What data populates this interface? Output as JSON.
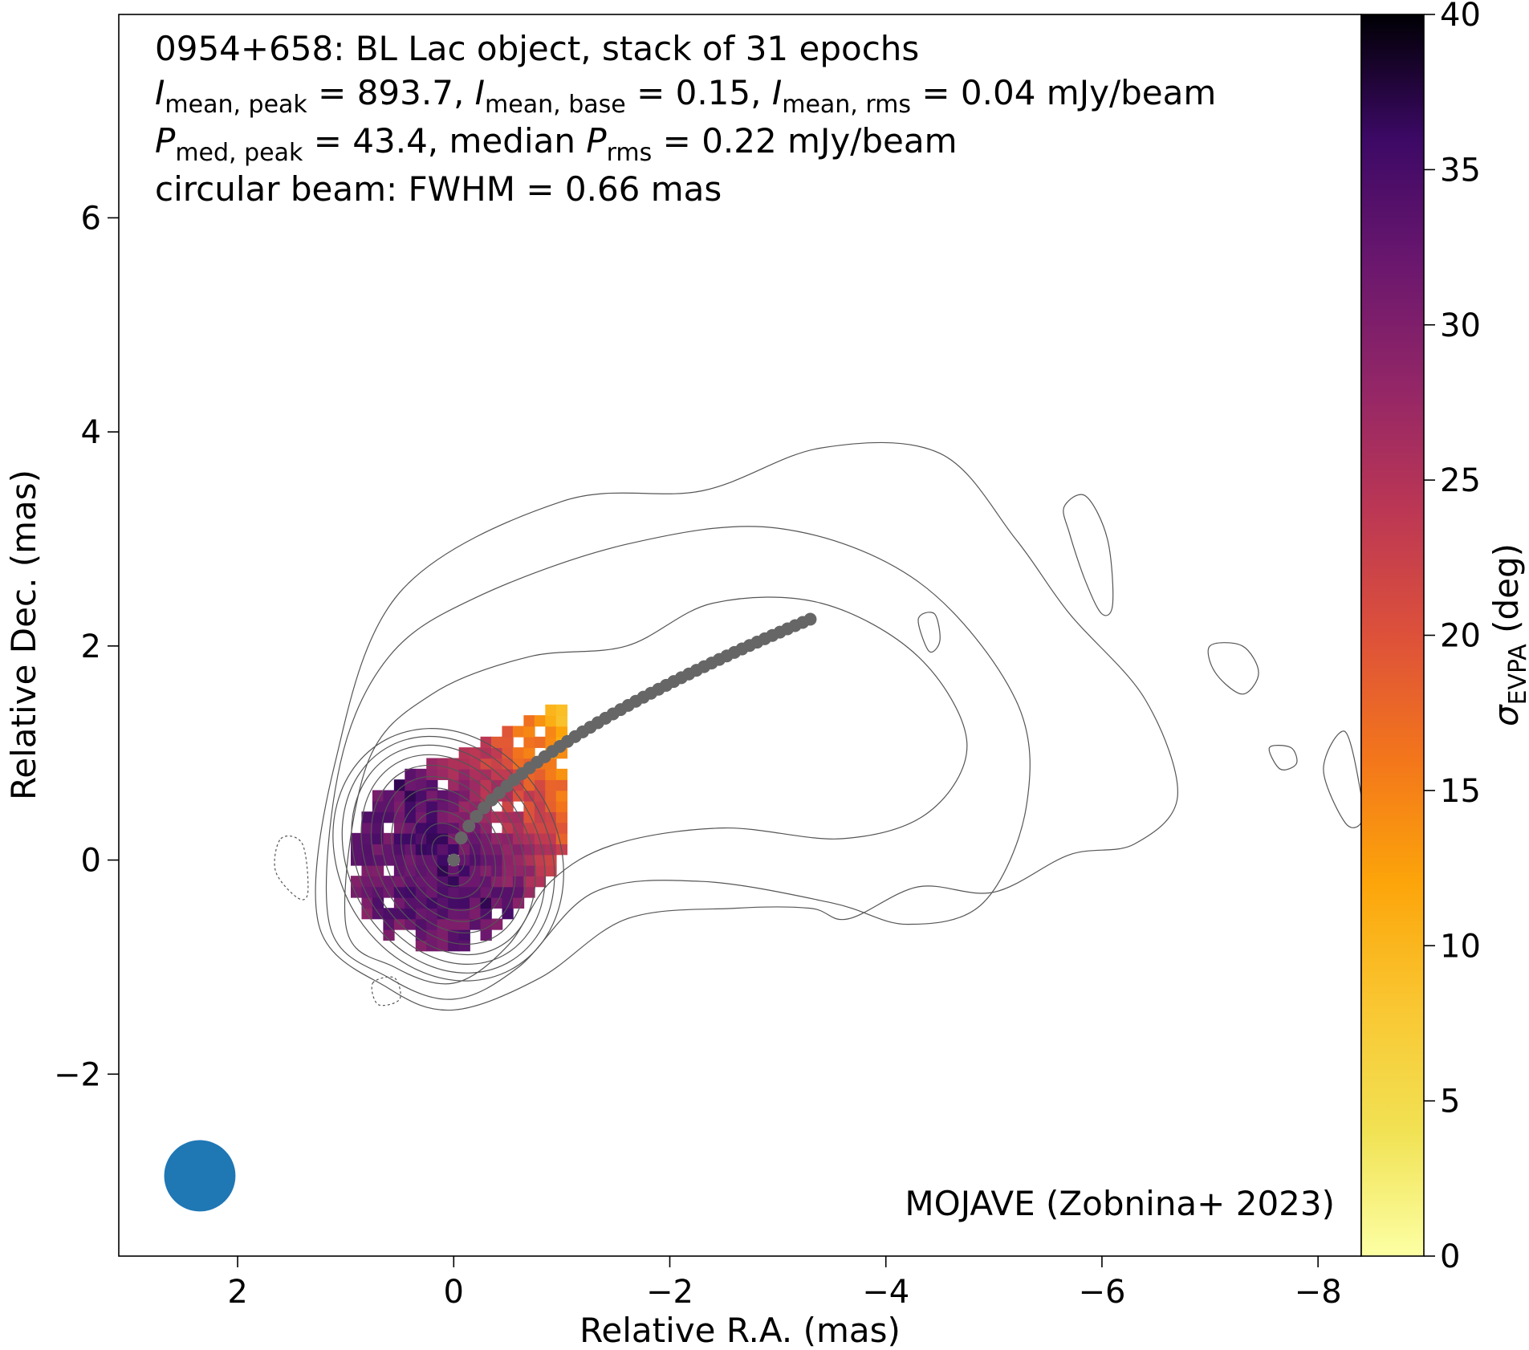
{
  "chart_data": {
    "type": "heatmap",
    "title_lines": [
      "0954+658: BL Lac object, stack of 31 epochs",
      "I_mean,peak = 893.7, I_mean,base = 0.15, I_mean,rms = 0.04 mJy/beam",
      "P_med,peak = 43.4, median P_rms = 0.22 mJy/beam",
      "circular beam: FWHM = 0.66 mas"
    ],
    "title_parts": {
      "sym_I": "I",
      "sym_P": "P",
      "sub_mean_peak": "mean, peak",
      "sub_mean_base": "mean, base",
      "sub_mean_rms": "mean, rms",
      "sub_med_peak": "med, peak",
      "sub_rms": "rms",
      "line1": "0954+658: BL Lac object, stack of 31 epochs",
      "line2_a": " = 893.7, ",
      "line2_b": " = 0.15, ",
      "line2_c": " = 0.04 mJy/beam",
      "line3_a": " = 43.4, median ",
      "line3_b": " = 0.22 mJy/beam",
      "line4": "circular beam: FWHM = 0.66 mas"
    },
    "credit": "MOJAVE (Zobnina+ 2023)",
    "xlabel": "Relative R.A. (mas)",
    "ylabel": "Relative Dec. (mas)",
    "xlim": [
      3.1,
      -8.4
    ],
    "ylim": [
      -3.7,
      7.9
    ],
    "x_ticks": [
      2,
      0,
      -2,
      -4,
      -6,
      -8
    ],
    "x_tick_labels": [
      "2",
      "0",
      "−2",
      "−4",
      "−6",
      "−8"
    ],
    "y_ticks": [
      -2,
      0,
      2,
      4,
      6
    ],
    "y_tick_labels": [
      "−2",
      "0",
      "2",
      "4",
      "6"
    ],
    "colorbar": {
      "label_symbol": "σ",
      "label_sub": "EVPA",
      "label_unit": " (deg)",
      "range": [
        0,
        40
      ],
      "ticks": [
        0,
        5,
        10,
        15,
        20,
        25,
        30,
        35,
        40
      ],
      "colormap": "inferno_r"
    },
    "ridgeline": {
      "color": "#666666",
      "start": [
        0.0,
        0.0
      ],
      "end": [
        -3.3,
        2.25
      ],
      "n_points": 48
    },
    "beam": {
      "center": [
        2.35,
        -2.95
      ],
      "fwhm_mas": 0.66,
      "color": "#1f77b4"
    },
    "sigma_evpa_field": {
      "pixel_size_mas": 0.1,
      "core": {
        "center": [
          0.05,
          0.05
        ],
        "value": 35
      },
      "jet_direction_deg": 35,
      "value_at_jet_end": 6
    },
    "contours": {
      "color": "#555555",
      "core_levels_semi_axes_mas": [
        [
          0.14,
          0.19
        ],
        [
          0.23,
          0.31
        ],
        [
          0.32,
          0.43
        ],
        [
          0.4,
          0.55
        ],
        [
          0.48,
          0.66
        ],
        [
          0.57,
          0.77
        ],
        [
          0.66,
          0.88
        ],
        [
          0.75,
          0.98
        ],
        [
          0.84,
          1.07
        ],
        [
          0.93,
          1.15
        ],
        [
          1.02,
          1.22
        ]
      ],
      "outer_levels": [
        [
          [
            1.0,
            -0.6
          ],
          [
            0.55,
            -1.0
          ],
          [
            0.0,
            -1.15
          ],
          [
            -0.5,
            -0.8
          ],
          [
            -0.9,
            -0.2
          ],
          [
            -1.5,
            0.15
          ],
          [
            -2.5,
            0.3
          ],
          [
            -3.6,
            0.2
          ],
          [
            -4.4,
            0.45
          ],
          [
            -4.75,
            1.1
          ],
          [
            -4.3,
            1.9
          ],
          [
            -3.4,
            2.4
          ],
          [
            -2.4,
            2.4
          ],
          [
            -1.6,
            2.0
          ],
          [
            -0.7,
            1.9
          ],
          [
            0.2,
            1.55
          ],
          [
            0.8,
            0.9
          ]
        ],
        [
          [
            1.15,
            -0.6
          ],
          [
            0.6,
            -1.1
          ],
          [
            0.0,
            -1.3
          ],
          [
            -0.6,
            -1.0
          ],
          [
            -1.3,
            -0.3
          ],
          [
            -2.3,
            -0.2
          ],
          [
            -3.5,
            -0.4
          ],
          [
            -4.2,
            -0.6
          ],
          [
            -4.9,
            -0.4
          ],
          [
            -5.3,
            0.5
          ],
          [
            -5.2,
            1.5
          ],
          [
            -4.3,
            2.6
          ],
          [
            -3.0,
            3.1
          ],
          [
            -1.6,
            2.95
          ],
          [
            -0.2,
            2.45
          ],
          [
            0.6,
            1.9
          ],
          [
            1.05,
            0.9
          ]
        ],
        [
          [
            1.25,
            -0.6
          ],
          [
            0.6,
            -1.2
          ],
          [
            0.0,
            -1.4
          ],
          [
            -0.8,
            -1.1
          ],
          [
            -1.6,
            -0.55
          ],
          [
            -2.6,
            -0.45
          ],
          [
            -3.3,
            -0.45
          ],
          [
            -3.65,
            -0.55
          ],
          [
            -4.3,
            -0.25
          ],
          [
            -5.0,
            -0.3
          ],
          [
            -5.7,
            0.05
          ],
          [
            -6.3,
            0.15
          ],
          [
            -6.7,
            0.6
          ],
          [
            -6.4,
            1.5
          ],
          [
            -5.7,
            2.3
          ],
          [
            -5.2,
            3.0
          ],
          [
            -4.5,
            3.8
          ],
          [
            -3.4,
            3.85
          ],
          [
            -2.3,
            3.45
          ],
          [
            -1.0,
            3.35
          ],
          [
            0.5,
            2.5
          ],
          [
            1.1,
            0.9
          ]
        ]
      ],
      "islands": [
        [
          [
            -5.65,
            3.3
          ],
          [
            -5.85,
            3.4
          ],
          [
            -6.05,
            3.0
          ],
          [
            -6.1,
            2.4
          ],
          [
            -6.0,
            2.3
          ],
          [
            -5.85,
            2.6
          ],
          [
            -5.7,
            3.05
          ]
        ],
        [
          [
            -4.3,
            2.25
          ],
          [
            -4.45,
            2.3
          ],
          [
            -4.5,
            2.05
          ],
          [
            -4.4,
            1.95
          ]
        ],
        [
          [
            -7.0,
            2.0
          ],
          [
            -7.3,
            2.0
          ],
          [
            -7.45,
            1.75
          ],
          [
            -7.3,
            1.55
          ],
          [
            -7.05,
            1.75
          ]
        ],
        [
          [
            -7.55,
            1.05
          ],
          [
            -7.75,
            1.05
          ],
          [
            -7.8,
            0.9
          ],
          [
            -7.65,
            0.85
          ]
        ],
        [
          [
            -8.4,
            0.6
          ],
          [
            -8.25,
            1.2
          ],
          [
            -8.05,
            0.85
          ],
          [
            -8.25,
            0.35
          ],
          [
            -8.4,
            0.35
          ]
        ]
      ],
      "negative_levels": [
        [
          [
            1.6,
            0.2
          ],
          [
            1.4,
            0.15
          ],
          [
            1.35,
            -0.3
          ],
          [
            1.45,
            -0.35
          ],
          [
            1.65,
            -0.1
          ]
        ],
        [
          [
            0.75,
            -1.15
          ],
          [
            0.55,
            -1.1
          ],
          [
            0.5,
            -1.3
          ],
          [
            0.7,
            -1.35
          ]
        ]
      ]
    }
  }
}
